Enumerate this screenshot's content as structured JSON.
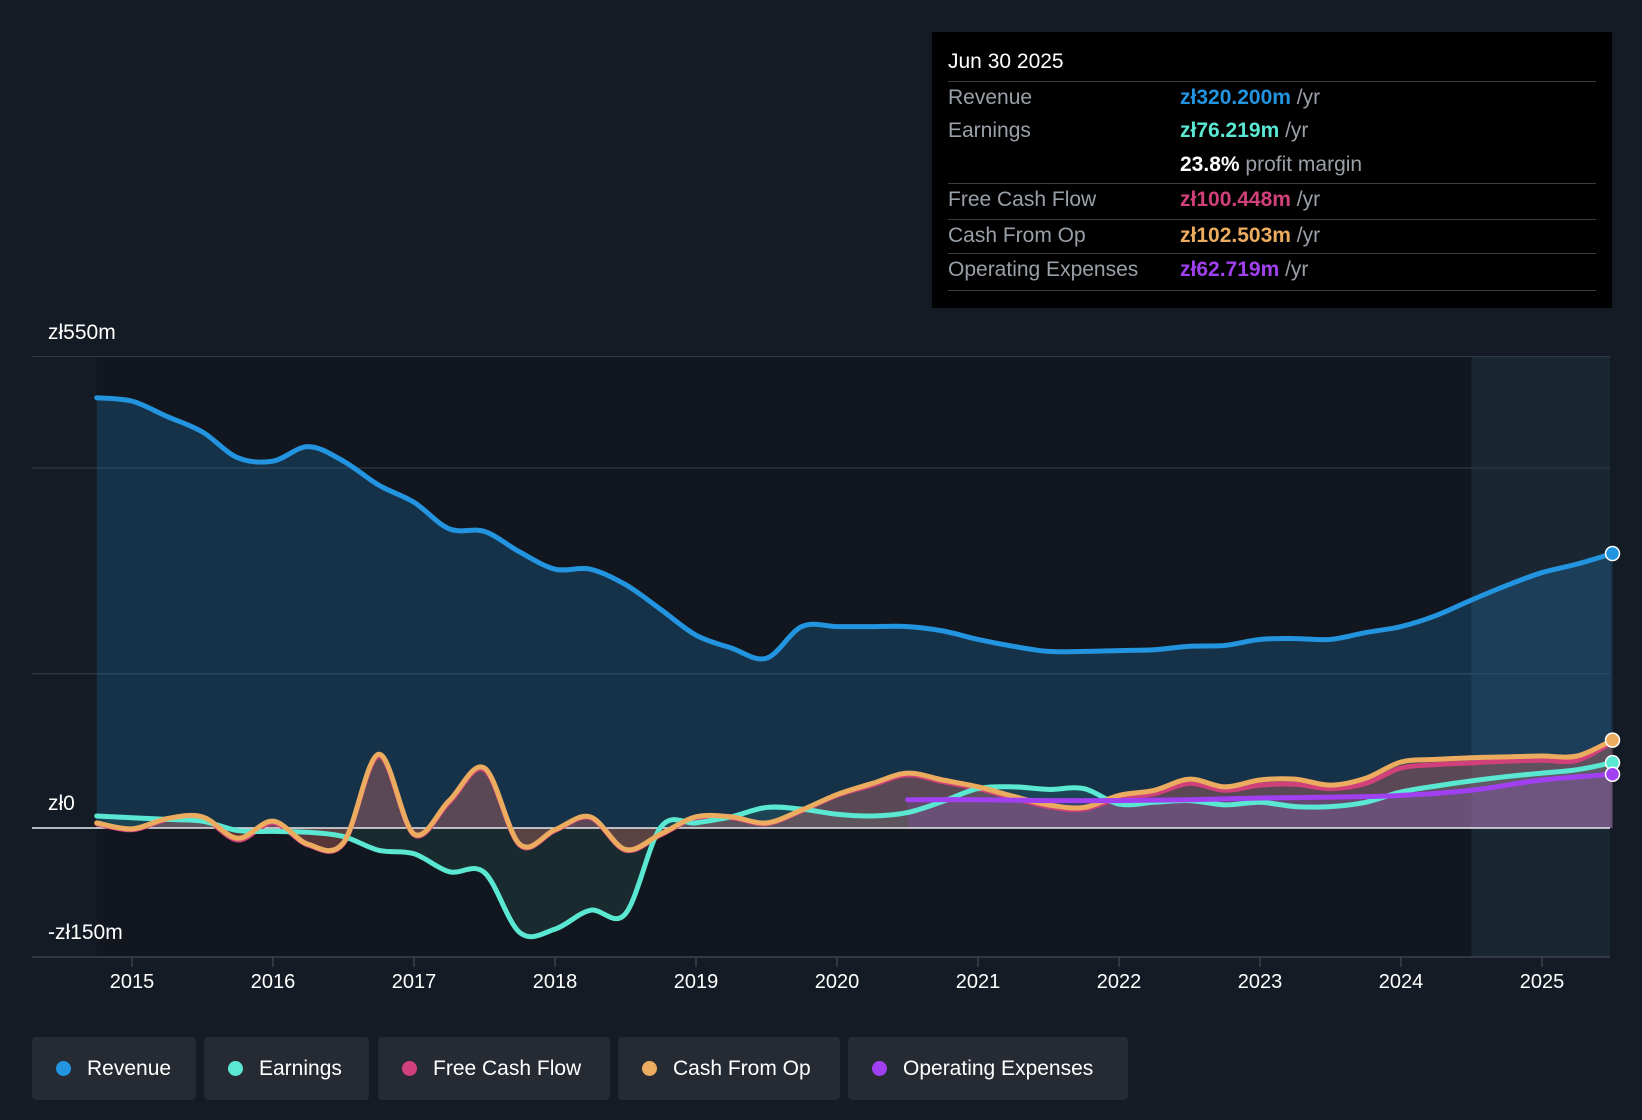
{
  "chart_data": {
    "type": "area",
    "currency": "zł",
    "y_labels": {
      "top": "zł550m",
      "zero": "zł0",
      "bottom": "-zł150m"
    },
    "ylim": [
      -150,
      550
    ],
    "xlim": [
      2014.75,
      2025.5
    ],
    "x_ticks": [
      "2015",
      "2016",
      "2017",
      "2018",
      "2019",
      "2020",
      "2021",
      "2022",
      "2023",
      "2024",
      "2025"
    ],
    "highlight_region_start": 2024.5,
    "series": [
      {
        "name": "Revenue",
        "color": "#2394df",
        "points": [
          [
            2014.75,
            502
          ],
          [
            2015,
            498
          ],
          [
            2015.25,
            480
          ],
          [
            2015.5,
            462
          ],
          [
            2015.75,
            432
          ],
          [
            2016,
            428
          ],
          [
            2016.25,
            445
          ],
          [
            2016.5,
            428
          ],
          [
            2016.75,
            400
          ],
          [
            2017,
            380
          ],
          [
            2017.25,
            349
          ],
          [
            2017.5,
            346
          ],
          [
            2017.75,
            322
          ],
          [
            2018,
            302
          ],
          [
            2018.25,
            302
          ],
          [
            2018.5,
            284
          ],
          [
            2018.75,
            255
          ],
          [
            2019,
            225
          ],
          [
            2019.25,
            210
          ],
          [
            2019.5,
            198
          ],
          [
            2019.75,
            235
          ],
          [
            2020,
            235
          ],
          [
            2020.25,
            235
          ],
          [
            2020.5,
            235
          ],
          [
            2020.75,
            230
          ],
          [
            2021,
            220
          ],
          [
            2021.25,
            212
          ],
          [
            2021.5,
            206
          ],
          [
            2021.75,
            206
          ],
          [
            2022,
            207
          ],
          [
            2022.25,
            208
          ],
          [
            2022.5,
            212
          ],
          [
            2022.75,
            213
          ],
          [
            2023,
            220
          ],
          [
            2023.25,
            221
          ],
          [
            2023.5,
            220
          ],
          [
            2023.75,
            228
          ],
          [
            2024,
            235
          ],
          [
            2024.25,
            248
          ],
          [
            2024.5,
            266
          ],
          [
            2024.75,
            283
          ],
          [
            2025,
            298
          ],
          [
            2025.25,
            308
          ],
          [
            2025.5,
            320.2
          ]
        ]
      },
      {
        "name": "Earnings",
        "color": "#5ae8d2",
        "points": [
          [
            2014.75,
            14
          ],
          [
            2015,
            12
          ],
          [
            2015.25,
            10
          ],
          [
            2015.5,
            8
          ],
          [
            2015.75,
            -3
          ],
          [
            2016,
            -4
          ],
          [
            2016.25,
            -5
          ],
          [
            2016.5,
            -10
          ],
          [
            2016.75,
            -26
          ],
          [
            2017,
            -30
          ],
          [
            2017.25,
            -51
          ],
          [
            2017.5,
            -52
          ],
          [
            2017.75,
            -122
          ],
          [
            2018,
            -118
          ],
          [
            2018.25,
            -96
          ],
          [
            2018.5,
            -100
          ],
          [
            2018.75,
            1
          ],
          [
            2019,
            6
          ],
          [
            2019.25,
            13
          ],
          [
            2019.5,
            24
          ],
          [
            2019.75,
            22
          ],
          [
            2020,
            16
          ],
          [
            2020.25,
            14
          ],
          [
            2020.5,
            18
          ],
          [
            2020.75,
            31
          ],
          [
            2021,
            46
          ],
          [
            2021.25,
            48
          ],
          [
            2021.5,
            45
          ],
          [
            2021.75,
            46
          ],
          [
            2022,
            28
          ],
          [
            2022.25,
            30
          ],
          [
            2022.5,
            32
          ],
          [
            2022.75,
            27
          ],
          [
            2023,
            30
          ],
          [
            2023.25,
            25
          ],
          [
            2023.5,
            25
          ],
          [
            2023.75,
            30
          ],
          [
            2024,
            42
          ],
          [
            2024.25,
            49
          ],
          [
            2024.5,
            55
          ],
          [
            2024.75,
            60
          ],
          [
            2025,
            64
          ],
          [
            2025.25,
            68
          ],
          [
            2025.5,
            76.219
          ]
        ]
      },
      {
        "name": "Free Cash Flow",
        "color": "#d0407a",
        "points": [
          [
            2014.75,
            5
          ],
          [
            2015,
            -2
          ],
          [
            2015.25,
            10
          ],
          [
            2015.5,
            12
          ],
          [
            2015.75,
            -14
          ],
          [
            2016,
            6
          ],
          [
            2016.25,
            -20
          ],
          [
            2016.5,
            -18
          ],
          [
            2016.75,
            84
          ],
          [
            2017,
            -8
          ],
          [
            2017.25,
            30
          ],
          [
            2017.5,
            68
          ],
          [
            2017.75,
            -20
          ],
          [
            2018,
            -3
          ],
          [
            2018.25,
            12
          ],
          [
            2018.5,
            -26
          ],
          [
            2018.75,
            -8
          ],
          [
            2019,
            12
          ],
          [
            2019.25,
            12
          ],
          [
            2019.5,
            5
          ],
          [
            2019.75,
            20
          ],
          [
            2020,
            38
          ],
          [
            2020.25,
            50
          ],
          [
            2020.5,
            62
          ],
          [
            2020.75,
            54
          ],
          [
            2021,
            46
          ],
          [
            2021.25,
            35
          ],
          [
            2021.5,
            25
          ],
          [
            2021.75,
            22
          ],
          [
            2022,
            35
          ],
          [
            2022.25,
            40
          ],
          [
            2022.5,
            52
          ],
          [
            2022.75,
            44
          ],
          [
            2023,
            50
          ],
          [
            2023.25,
            51
          ],
          [
            2023.5,
            46
          ],
          [
            2023.75,
            52
          ],
          [
            2024,
            70
          ],
          [
            2024.25,
            74
          ],
          [
            2024.5,
            76
          ],
          [
            2024.75,
            78
          ],
          [
            2025,
            79
          ],
          [
            2025.25,
            79
          ],
          [
            2025.5,
            100.448
          ]
        ]
      },
      {
        "name": "Cash From Op",
        "color": "#ecac5f",
        "points": [
          [
            2014.75,
            6
          ],
          [
            2015,
            -1
          ],
          [
            2015.25,
            11
          ],
          [
            2015.5,
            13
          ],
          [
            2015.75,
            -12
          ],
          [
            2016,
            8
          ],
          [
            2016.25,
            -19
          ],
          [
            2016.5,
            -17
          ],
          [
            2016.75,
            86
          ],
          [
            2017,
            -7
          ],
          [
            2017.25,
            32
          ],
          [
            2017.5,
            70
          ],
          [
            2017.75,
            -19
          ],
          [
            2018,
            -2
          ],
          [
            2018.25,
            13
          ],
          [
            2018.5,
            -25
          ],
          [
            2018.75,
            -7
          ],
          [
            2019,
            13
          ],
          [
            2019.25,
            13
          ],
          [
            2019.5,
            6
          ],
          [
            2019.75,
            21
          ],
          [
            2020,
            39
          ],
          [
            2020.25,
            52
          ],
          [
            2020.5,
            64
          ],
          [
            2020.75,
            56
          ],
          [
            2021,
            48
          ],
          [
            2021.25,
            37
          ],
          [
            2021.5,
            27
          ],
          [
            2021.75,
            24
          ],
          [
            2022,
            38
          ],
          [
            2022.25,
            44
          ],
          [
            2022.5,
            57
          ],
          [
            2022.75,
            48
          ],
          [
            2023,
            56
          ],
          [
            2023.25,
            57
          ],
          [
            2023.5,
            50
          ],
          [
            2023.75,
            58
          ],
          [
            2024,
            77
          ],
          [
            2024.25,
            80
          ],
          [
            2024.5,
            82
          ],
          [
            2024.75,
            83
          ],
          [
            2025,
            84
          ],
          [
            2025.25,
            84
          ],
          [
            2025.5,
            102.503
          ]
        ]
      },
      {
        "name": "Operating Expenses",
        "color": "#a040f0",
        "points": [
          [
            2020.5,
            33
          ],
          [
            2021,
            33
          ],
          [
            2021.5,
            32
          ],
          [
            2022,
            32
          ],
          [
            2022.5,
            33
          ],
          [
            2023,
            35
          ],
          [
            2023.5,
            36
          ],
          [
            2024,
            38
          ],
          [
            2024.5,
            44
          ],
          [
            2025,
            56
          ],
          [
            2025.5,
            62.719
          ]
        ]
      }
    ]
  },
  "tooltip": {
    "date": "Jun 30 2025",
    "rows": [
      {
        "label": "Revenue",
        "value": "zł320.200m",
        "unit": "/yr",
        "color": "#2394df"
      },
      {
        "label": "Earnings",
        "value": "zł76.219m",
        "unit": "/yr",
        "color": "#5ae8d2"
      },
      {
        "label": "",
        "value": "23.8%",
        "unit": "profit margin",
        "color": "#ffffff"
      },
      {
        "label": "Free Cash Flow",
        "value": "zł100.448m",
        "unit": "/yr",
        "color": "#d0407a"
      },
      {
        "label": "Cash From Op",
        "value": "zł102.503m",
        "unit": "/yr",
        "color": "#ecac5f"
      },
      {
        "label": "Operating Expenses",
        "value": "zł62.719m",
        "unit": "/yr",
        "color": "#a040f0"
      }
    ]
  },
  "legend": [
    {
      "label": "Revenue",
      "color": "#2394df"
    },
    {
      "label": "Earnings",
      "color": "#5ae8d2"
    },
    {
      "label": "Free Cash Flow",
      "color": "#d0407a"
    },
    {
      "label": "Cash From Op",
      "color": "#ecac5f"
    },
    {
      "label": "Operating Expenses",
      "color": "#a040f0"
    }
  ]
}
